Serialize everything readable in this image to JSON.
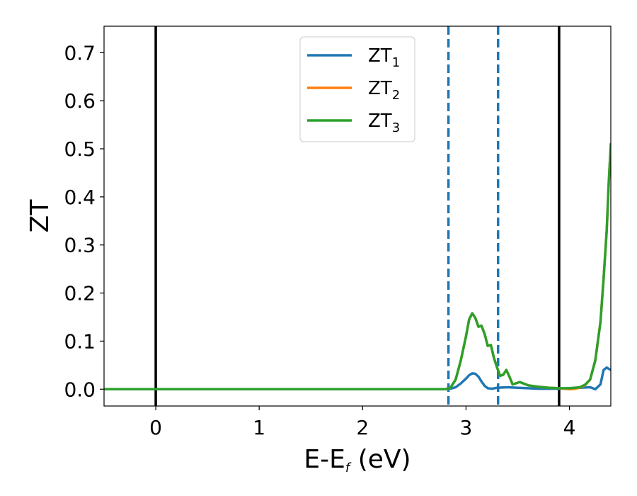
{
  "chart_data": {
    "type": "line",
    "xlabel_main": "E-E",
    "xlabel_sub": "f",
    "xlabel_tail": " (eV)",
    "ylabel": "ZT",
    "xlim": [
      -0.5,
      4.4
    ],
    "ylim": [
      -0.035,
      0.755
    ],
    "xticks": [
      0,
      1,
      2,
      3,
      4
    ],
    "xtick_labels": [
      "0",
      "1",
      "2",
      "3",
      "4"
    ],
    "yticks": [
      0.0,
      0.1,
      0.2,
      0.3,
      0.4,
      0.5,
      0.6,
      0.7
    ],
    "ytick_labels": [
      "0.0",
      "0.1",
      "0.2",
      "0.3",
      "0.4",
      "0.5",
      "0.6",
      "0.7"
    ],
    "grid": false,
    "legend_position": "top-center",
    "vlines_solid": [
      0,
      3.9
    ],
    "vlines_dashed": [
      2.83,
      3.31
    ],
    "colors": {
      "series1": "#1f77b4",
      "series2": "#ff7f0e",
      "series3": "#2ca02c",
      "solid_vline": "#000000",
      "dashed_vline": "#1f77b4"
    },
    "series": [
      {
        "name_main": "ZT",
        "name_sub": "1",
        "color": "#1f77b4",
        "x": [
          -0.5,
          2.8,
          2.85,
          2.9,
          2.95,
          3.0,
          3.03,
          3.06,
          3.09,
          3.12,
          3.15,
          3.18,
          3.21,
          3.25,
          3.3,
          3.4,
          3.5,
          3.6,
          3.7,
          3.8,
          3.9,
          4.0,
          4.1,
          4.2,
          4.25,
          4.3,
          4.33,
          4.36,
          4.4
        ],
        "y": [
          0.0,
          0.0,
          0.001,
          0.004,
          0.012,
          0.022,
          0.029,
          0.033,
          0.032,
          0.026,
          0.016,
          0.007,
          0.002,
          0.001,
          0.003,
          0.004,
          0.003,
          0.002,
          0.001,
          0.001,
          0.001,
          0.002,
          0.003,
          0.004,
          0.0,
          0.01,
          0.04,
          0.045,
          0.04
        ]
      },
      {
        "name_main": "ZT",
        "name_sub": "2",
        "color": "#ff7f0e",
        "x": [
          -0.5,
          2.8,
          2.85,
          2.9,
          2.95,
          3.0,
          3.03,
          3.06,
          3.09,
          3.12,
          3.15,
          3.18,
          3.21,
          3.24,
          3.27,
          3.3,
          3.33,
          3.36,
          3.39,
          3.42,
          3.45,
          3.48,
          3.52,
          3.6,
          3.7,
          3.8,
          3.9,
          4.0,
          4.05,
          4.1,
          4.15,
          4.2,
          4.25,
          4.3,
          4.33,
          4.36,
          4.38,
          4.4
        ],
        "y": [
          0.0,
          0.0,
          0.003,
          0.02,
          0.06,
          0.11,
          0.145,
          0.158,
          0.148,
          0.13,
          0.132,
          0.115,
          0.09,
          0.092,
          0.065,
          0.045,
          0.028,
          0.03,
          0.04,
          0.026,
          0.01,
          0.012,
          0.015,
          0.008,
          0.005,
          0.003,
          0.002,
          0.0,
          0.001,
          0.003,
          0.008,
          0.02,
          0.06,
          0.14,
          0.23,
          0.33,
          0.43,
          0.51
        ]
      },
      {
        "name_main": "ZT",
        "name_sub": "3",
        "color": "#2ca02c",
        "x": [
          -0.5,
          2.8,
          2.85,
          2.9,
          2.95,
          3.0,
          3.03,
          3.06,
          3.09,
          3.12,
          3.15,
          3.18,
          3.21,
          3.24,
          3.27,
          3.3,
          3.33,
          3.36,
          3.39,
          3.42,
          3.45,
          3.48,
          3.52,
          3.6,
          3.7,
          3.8,
          3.9,
          4.0,
          4.05,
          4.1,
          4.15,
          4.2,
          4.25,
          4.3,
          4.33,
          4.36,
          4.38,
          4.4
        ],
        "y": [
          0.0,
          0.0,
          0.003,
          0.02,
          0.06,
          0.11,
          0.145,
          0.158,
          0.148,
          0.13,
          0.132,
          0.115,
          0.09,
          0.092,
          0.065,
          0.045,
          0.028,
          0.03,
          0.04,
          0.026,
          0.01,
          0.012,
          0.015,
          0.008,
          0.005,
          0.003,
          0.002,
          0.002,
          0.003,
          0.004,
          0.009,
          0.02,
          0.06,
          0.14,
          0.23,
          0.33,
          0.43,
          0.51
        ]
      }
    ]
  }
}
